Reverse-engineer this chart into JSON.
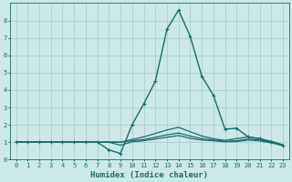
{
  "xlabel": "Humidex (Indice chaleur)",
  "xlim": [
    -0.5,
    23.5
  ],
  "ylim": [
    0,
    9
  ],
  "yticks": [
    0,
    1,
    2,
    3,
    4,
    5,
    6,
    7,
    8
  ],
  "xticks": [
    0,
    1,
    2,
    3,
    4,
    5,
    6,
    7,
    8,
    9,
    10,
    11,
    12,
    13,
    14,
    15,
    16,
    17,
    18,
    19,
    20,
    21,
    22,
    23
  ],
  "bg_color": "#cce8e8",
  "grid_color": "#aacece",
  "line_color": "#1a6b6b",
  "curves": [
    {
      "x": [
        0,
        1,
        2,
        3,
        4,
        5,
        6,
        7,
        8,
        9,
        10,
        11,
        12,
        13,
        14,
        15,
        16,
        17,
        18,
        19,
        20,
        21,
        22,
        23
      ],
      "y": [
        1,
        1,
        1,
        1,
        1,
        1,
        1,
        1,
        0.55,
        0.35,
        2.0,
        3.2,
        4.5,
        7.5,
        8.6,
        7.1,
        4.8,
        3.7,
        1.75,
        1.8,
        1.3,
        1.2,
        1.0,
        0.8
      ],
      "marker": true,
      "lw": 1.0
    },
    {
      "x": [
        0,
        1,
        2,
        3,
        4,
        5,
        6,
        7,
        8,
        9,
        10,
        11,
        12,
        13,
        14,
        15,
        16,
        17,
        18,
        19,
        20,
        21,
        22,
        23
      ],
      "y": [
        1,
        1,
        1,
        1,
        1,
        1,
        1,
        1,
        1,
        1,
        1.15,
        1.3,
        1.5,
        1.7,
        1.85,
        1.6,
        1.35,
        1.2,
        1.1,
        1.2,
        1.3,
        1.2,
        1.05,
        0.85
      ],
      "marker": false,
      "lw": 0.9
    },
    {
      "x": [
        0,
        1,
        2,
        3,
        4,
        5,
        6,
        7,
        8,
        9,
        10,
        11,
        12,
        13,
        14,
        15,
        16,
        17,
        18,
        19,
        20,
        21,
        22,
        23
      ],
      "y": [
        1,
        1,
        1,
        1,
        1,
        1,
        1,
        1,
        1,
        1,
        1.08,
        1.15,
        1.28,
        1.42,
        1.52,
        1.35,
        1.2,
        1.12,
        1.05,
        1.08,
        1.18,
        1.12,
        1.0,
        0.82
      ],
      "marker": false,
      "lw": 0.9
    },
    {
      "x": [
        0,
        1,
        2,
        3,
        4,
        5,
        6,
        7,
        8,
        9,
        10,
        11,
        12,
        13,
        14,
        15,
        16,
        17,
        18,
        19,
        20,
        21,
        22,
        23
      ],
      "y": [
        1,
        1,
        1,
        1,
        1,
        1,
        1,
        1,
        1,
        0.82,
        1.02,
        1.08,
        1.18,
        1.28,
        1.38,
        1.22,
        1.12,
        1.08,
        1.02,
        1.03,
        1.12,
        1.07,
        0.96,
        0.8
      ],
      "marker": false,
      "lw": 0.9
    }
  ]
}
